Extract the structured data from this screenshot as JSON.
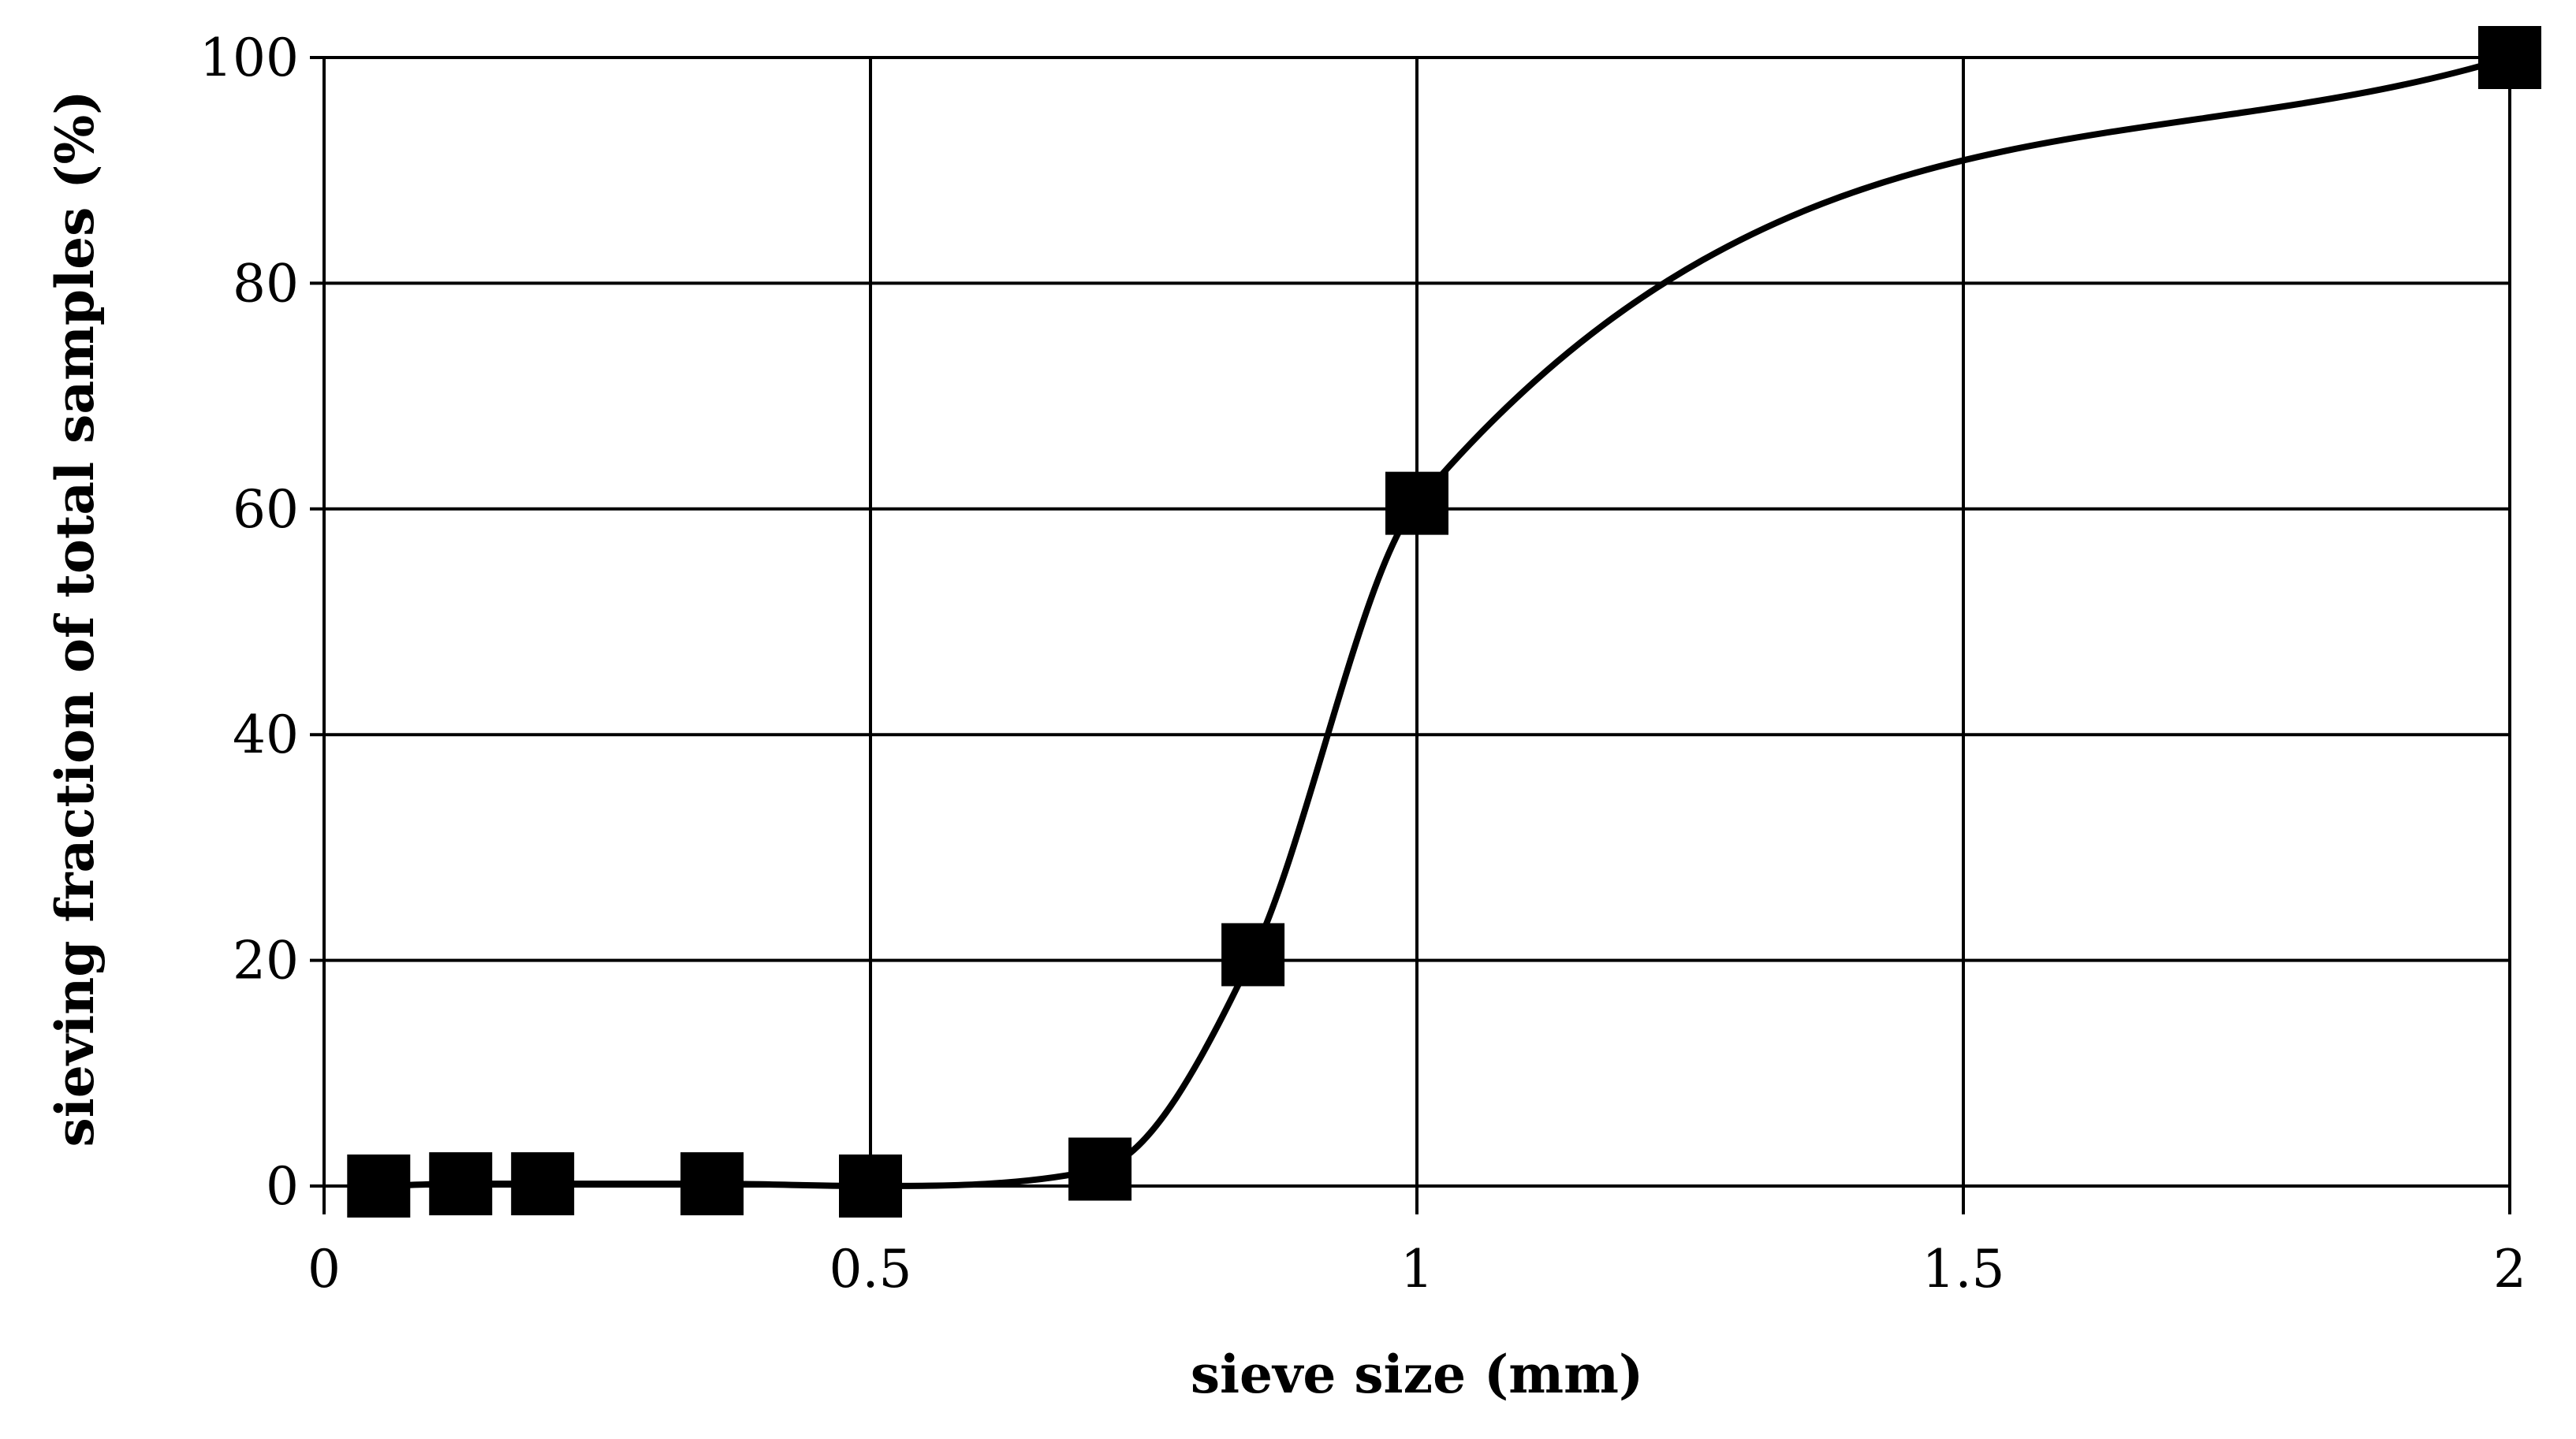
{
  "chart_data": {
    "type": "line",
    "title": "",
    "xlabel": "sieve size (mm)",
    "ylabel": "sieving fraction of total samples (%)",
    "xlim": [
      0,
      2
    ],
    "ylim": [
      0,
      100
    ],
    "x_ticks": [
      0,
      0.5,
      1,
      1.5,
      2
    ],
    "x_tick_labels": [
      "0",
      "0.5",
      "1",
      "1.5",
      "2"
    ],
    "y_ticks": [
      0,
      20,
      40,
      60,
      80,
      100
    ],
    "y_tick_labels": [
      "0",
      "20",
      "40",
      "60",
      "80",
      "100"
    ],
    "grid": true,
    "legend": "none",
    "line_color": "#000000",
    "marker": "square",
    "series": [
      {
        "x": [
          0.05,
          0.125,
          0.2,
          0.355,
          0.5,
          0.71,
          0.85,
          1,
          2
        ],
        "y": [
          0,
          0.2,
          0.2,
          0.2,
          0,
          1.5,
          20.5,
          60.5,
          100
        ]
      }
    ]
  }
}
